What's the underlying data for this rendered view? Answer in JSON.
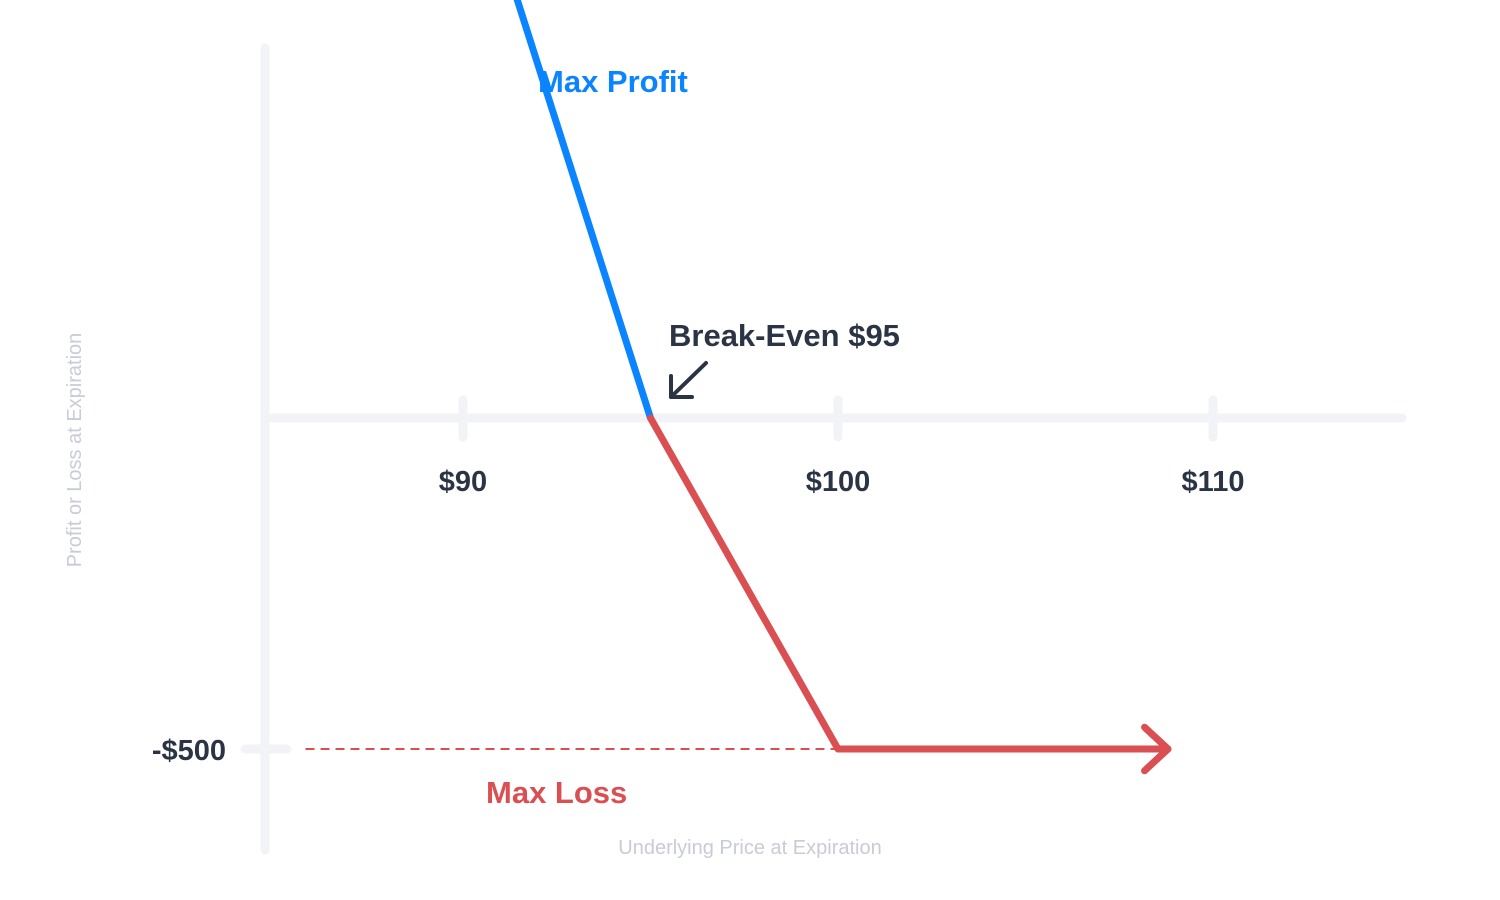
{
  "chart_data": {
    "type": "line",
    "xlabel": "Underlying Price at Expiration",
    "ylabel": "Profit or Loss at Expiration",
    "x_ticks": [
      {
        "value": 90,
        "label": "$90"
      },
      {
        "value": 100,
        "label": "$100"
      },
      {
        "value": 110,
        "label": "$110"
      }
    ],
    "y_ticks": [
      {
        "value": -500,
        "label": "-$500"
      }
    ],
    "xlim": [
      84.7,
      114.9
    ],
    "ylim": [
      -700,
      1400
    ],
    "series": [
      {
        "segment": "profit",
        "color": "#0a84ff",
        "x": [
          95,
          89.6
        ],
        "y": [
          0,
          960
        ],
        "arrow_end": true
      },
      {
        "segment": "loss",
        "color": "#d94f52",
        "x": [
          95,
          100,
          108.8
        ],
        "y": [
          0,
          -500,
          -500
        ],
        "arrow_end": true
      }
    ],
    "max_loss_line": {
      "y": -500,
      "x_from": 85.8,
      "x_to": 100,
      "style": "dashed",
      "color": "#d94f52"
    },
    "annotations": [
      {
        "key": "max_profit",
        "text": "Max Profit",
        "color": "#0a84ff"
      },
      {
        "key": "break_even",
        "text": "Break-Even $95",
        "color": "#2b3445",
        "x": 95
      },
      {
        "key": "max_loss",
        "text": "Max Loss",
        "color": "#d94f52"
      }
    ],
    "axis_color": "#f2f3f6"
  }
}
